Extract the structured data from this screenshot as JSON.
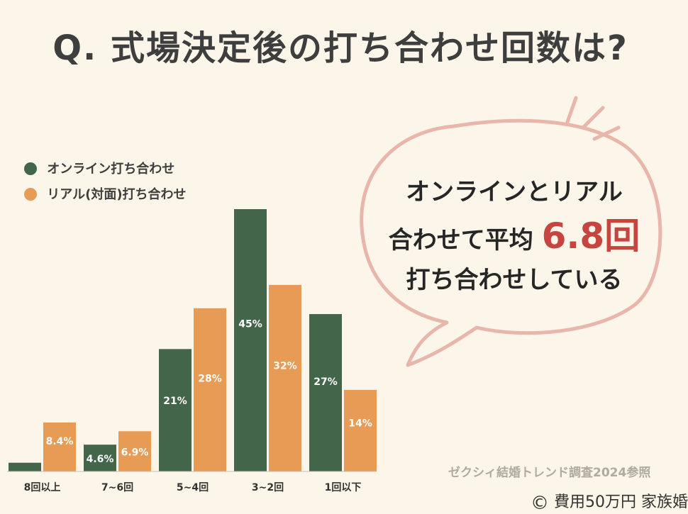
{
  "title": "Q. 式場決定後の打ち合わせ回数は?",
  "legend": {
    "online": "オンライン打ち合わせ",
    "real": "リアル(対面)打ち合わせ"
  },
  "colors": {
    "online": "#43664b",
    "real": "#e89b54",
    "accent": "#c7443f",
    "bubble_outline": "#e8b6aa"
  },
  "chart_data": {
    "type": "bar",
    "categories": [
      "8回以上",
      "7~6回",
      "5~4回",
      "3~2回",
      "1回以下"
    ],
    "series": [
      {
        "name": "オンライン打ち合わせ",
        "values": [
          1.5,
          4.6,
          21,
          45,
          27
        ],
        "labels": [
          "",
          "4.6%",
          "21%",
          "45%",
          "27%"
        ]
      },
      {
        "name": "リアル(対面)打ち合わせ",
        "values": [
          8.4,
          6.9,
          28,
          32,
          14
        ],
        "labels": [
          "8.4%",
          "6.9%",
          "28%",
          "32%",
          "14%"
        ]
      }
    ],
    "ylim": [
      0,
      45
    ],
    "grid": false,
    "legend_position": "top-left"
  },
  "bubble": {
    "line1": "オンラインとリアル",
    "line2_prefix": "合わせて平均",
    "line2_value": "6.8回",
    "line3": "打ち合わせしている"
  },
  "source": "ゼクシィ結婚トレンド調査2024参照",
  "footer": {
    "copyright": "©",
    "brand": "費用50万円 家族婚"
  }
}
